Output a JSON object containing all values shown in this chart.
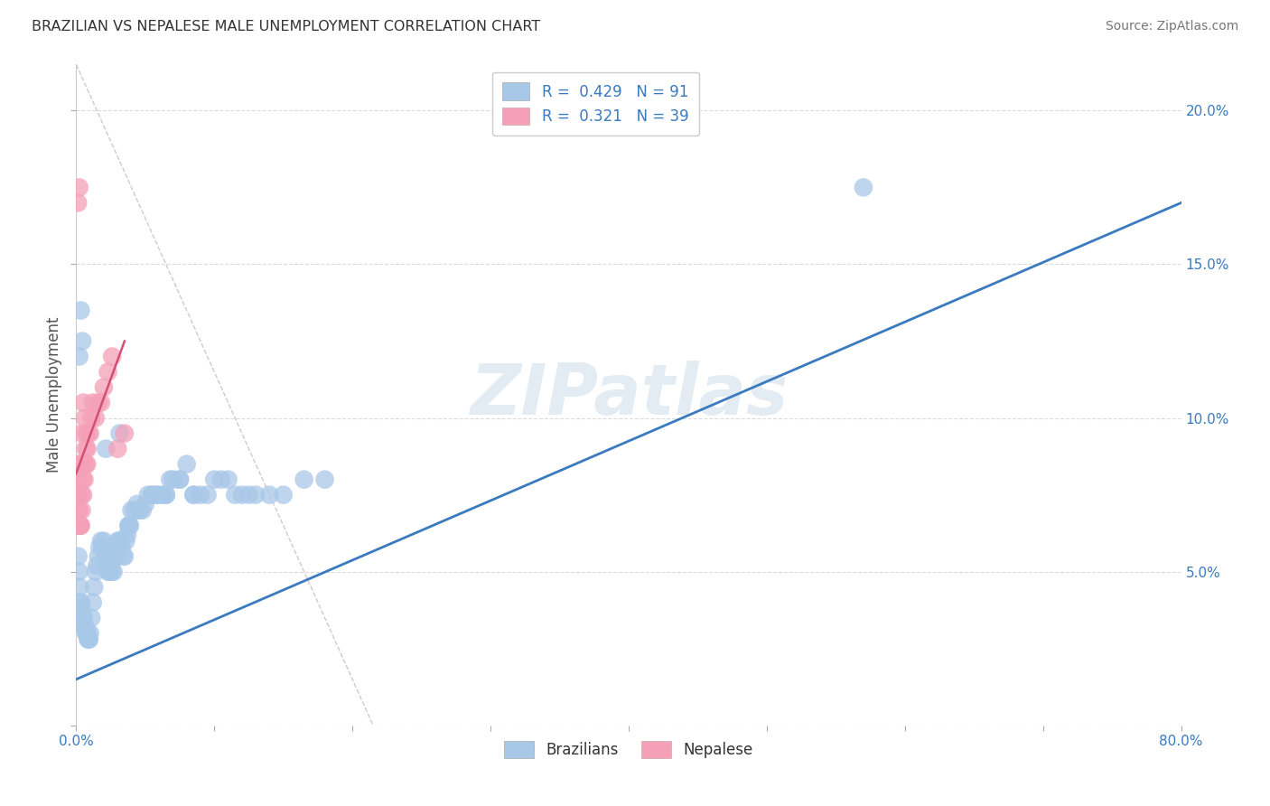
{
  "title": "BRAZILIAN VS NEPALESE MALE UNEMPLOYMENT CORRELATION CHART",
  "source": "Source: ZipAtlas.com",
  "ylabel": "Male Unemployment",
  "xlim": [
    0.0,
    80.0
  ],
  "ylim": [
    0.0,
    21.5
  ],
  "yticks": [
    0.0,
    5.0,
    10.0,
    15.0,
    20.0
  ],
  "ytick_labels_right": [
    "",
    "5.0%",
    "10.0%",
    "15.0%",
    "20.0%"
  ],
  "xtick_positions": [
    0,
    10,
    20,
    30,
    40,
    50,
    60,
    70,
    80
  ],
  "xtick_labels": [
    "0.0%",
    "",
    "",
    "",
    "",
    "",
    "",
    "",
    "80.0%"
  ],
  "watermark": "ZIPatlas",
  "brazil_R": 0.429,
  "brazil_N": 91,
  "nepal_R": 0.321,
  "nepal_N": 39,
  "brazil_color": "#a8c8e8",
  "nepal_color": "#f4a0b8",
  "brazil_line_color": "#3a7abf",
  "nepal_line_color": "#d45070",
  "ref_line_color": "#d0b8b8",
  "brazil_line": {
    "x0": 0,
    "y0": 1.5,
    "x1": 80,
    "y1": 17.0
  },
  "nepal_line": {
    "x0": 0,
    "y0": 8.2,
    "x1": 3.5,
    "y1": 12.5
  },
  "ref_line": {
    "x0": 0,
    "y0": 21.5,
    "x1": 21.5,
    "y1": 0
  },
  "brazil_scatter_x": [
    0.1,
    0.15,
    0.2,
    0.25,
    0.3,
    0.35,
    0.4,
    0.45,
    0.5,
    0.55,
    0.6,
    0.65,
    0.7,
    0.75,
    0.8,
    0.85,
    0.9,
    0.95,
    1.0,
    1.1,
    1.2,
    1.3,
    1.4,
    1.5,
    1.6,
    1.7,
    1.8,
    1.9,
    2.0,
    2.1,
    2.2,
    2.3,
    2.4,
    2.5,
    2.6,
    2.7,
    2.8,
    2.9,
    3.0,
    3.1,
    3.2,
    3.3,
    3.4,
    3.5,
    3.6,
    3.7,
    3.8,
    3.9,
    4.0,
    4.2,
    4.4,
    4.6,
    4.8,
    5.0,
    5.2,
    5.5,
    5.8,
    6.0,
    6.3,
    6.5,
    6.8,
    7.0,
    7.5,
    8.0,
    8.5,
    9.0,
    10.0,
    11.0,
    12.0,
    13.0,
    14.0,
    15.0,
    16.5,
    18.0,
    3.8,
    4.5,
    5.5,
    6.5,
    7.5,
    8.5,
    9.5,
    10.5,
    11.5,
    12.5,
    57.0,
    0.12,
    0.22,
    0.33,
    0.44,
    2.15,
    3.15
  ],
  "brazil_scatter_y": [
    6.5,
    5.5,
    5.0,
    4.5,
    4.0,
    4.0,
    3.8,
    3.5,
    3.5,
    3.5,
    3.2,
    3.2,
    3.0,
    3.0,
    3.0,
    2.8,
    2.8,
    2.8,
    3.0,
    3.5,
    4.0,
    4.5,
    5.0,
    5.2,
    5.5,
    5.8,
    6.0,
    5.8,
    6.0,
    5.5,
    5.5,
    5.0,
    5.0,
    5.2,
    5.0,
    5.0,
    5.5,
    5.5,
    6.0,
    6.0,
    6.0,
    5.8,
    5.5,
    5.5,
    6.0,
    6.2,
    6.5,
    6.5,
    7.0,
    7.0,
    7.2,
    7.0,
    7.0,
    7.2,
    7.5,
    7.5,
    7.5,
    7.5,
    7.5,
    7.5,
    8.0,
    8.0,
    8.0,
    8.5,
    7.5,
    7.5,
    8.0,
    8.0,
    7.5,
    7.5,
    7.5,
    7.5,
    8.0,
    8.0,
    6.5,
    7.0,
    7.5,
    7.5,
    8.0,
    7.5,
    7.5,
    8.0,
    7.5,
    7.5,
    17.5,
    7.5,
    12.0,
    13.5,
    12.5,
    9.0,
    9.5
  ],
  "nepal_scatter_x": [
    0.05,
    0.1,
    0.15,
    0.2,
    0.25,
    0.3,
    0.35,
    0.4,
    0.5,
    0.6,
    0.7,
    0.8,
    0.9,
    1.0,
    1.1,
    1.2,
    1.4,
    1.6,
    1.8,
    2.0,
    2.3,
    2.6,
    0.12,
    0.22,
    0.32,
    0.42,
    0.52,
    0.62,
    0.72,
    3.0,
    3.5,
    0.08,
    0.18,
    0.28,
    0.38,
    0.48,
    0.58,
    0.68,
    0.78
  ],
  "nepal_scatter_y": [
    8.5,
    8.0,
    7.5,
    7.0,
    6.5,
    6.5,
    6.5,
    7.0,
    7.5,
    8.0,
    8.5,
    9.0,
    9.5,
    9.5,
    10.0,
    10.5,
    10.0,
    10.5,
    10.5,
    11.0,
    11.5,
    12.0,
    17.0,
    17.5,
    8.5,
    9.5,
    10.5,
    10.0,
    9.5,
    9.0,
    9.5,
    7.5,
    7.0,
    6.5,
    7.5,
    8.0,
    8.5,
    9.0,
    8.5
  ]
}
